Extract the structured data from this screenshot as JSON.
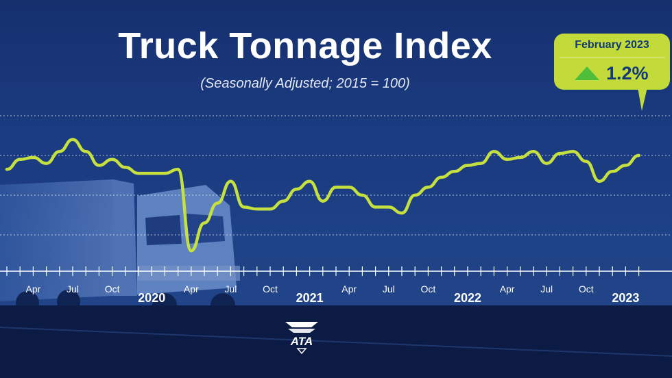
{
  "header": {
    "title": "Truck Tonnage Index",
    "subtitle": "(Seasonally Adjusted; 2015 = 100)"
  },
  "callout": {
    "month": "February 2023",
    "change": "1.2%",
    "direction": "up",
    "background_color": "#c2db3a",
    "arrow_color": "#4fbf3a",
    "text_color": "#123a76"
  },
  "logo": {
    "text": "ATA"
  },
  "chart_data": {
    "type": "line",
    "title": "Truck Tonnage Index",
    "subtitle": "(Seasonally Adjusted; 2015 = 100)",
    "xlabel": "",
    "ylabel": "",
    "x": [
      "2019-02",
      "2019-03",
      "2019-04",
      "2019-05",
      "2019-06",
      "2019-07",
      "2019-08",
      "2019-09",
      "2019-10",
      "2019-11",
      "2019-12",
      "2020-01",
      "2020-02",
      "2020-03",
      "2020-04",
      "2020-05",
      "2020-06",
      "2020-07",
      "2020-08",
      "2020-09",
      "2020-10",
      "2020-11",
      "2020-12",
      "2021-01",
      "2021-02",
      "2021-03",
      "2021-04",
      "2021-05",
      "2021-06",
      "2021-07",
      "2021-08",
      "2021-09",
      "2021-10",
      "2021-11",
      "2021-12",
      "2022-01",
      "2022-02",
      "2022-03",
      "2022-04",
      "2022-05",
      "2022-06",
      "2022-07",
      "2022-08",
      "2022-09",
      "2022-10",
      "2022-11",
      "2022-12",
      "2023-01",
      "2023-02"
    ],
    "series": [
      {
        "color": "#c5e03f",
        "values": [
          4.3,
          4.8,
          4.9,
          4.6,
          5.2,
          5.8,
          5.2,
          4.5,
          4.8,
          4.4,
          4.1,
          4.1,
          4.1,
          4.3,
          0.2,
          1.6,
          2.6,
          3.7,
          2.4,
          2.3,
          2.3,
          2.7,
          3.3,
          3.7,
          2.7,
          3.4,
          3.4,
          3.0,
          2.4,
          2.4,
          2.1,
          3.0,
          3.4,
          3.9,
          4.2,
          4.5,
          4.6,
          5.2,
          4.8,
          4.9,
          5.2,
          4.6,
          5.1,
          5.2,
          4.7,
          3.7,
          4.2,
          4.5,
          5.0
        ]
      }
    ],
    "x_tick_labels": [
      {
        "label": "Apr",
        "x": "2019-04"
      },
      {
        "label": "Jul",
        "x": "2019-07"
      },
      {
        "label": "Oct",
        "x": "2019-10"
      },
      {
        "label": "Apr",
        "x": "2020-04"
      },
      {
        "label": "Jul",
        "x": "2020-07"
      },
      {
        "label": "Oct",
        "x": "2020-10"
      },
      {
        "label": "Apr",
        "x": "2021-04"
      },
      {
        "label": "Jul",
        "x": "2021-07"
      },
      {
        "label": "Oct",
        "x": "2021-10"
      },
      {
        "label": "Apr",
        "x": "2022-04"
      },
      {
        "label": "Jul",
        "x": "2022-07"
      },
      {
        "label": "Oct",
        "x": "2022-10"
      }
    ],
    "year_labels": [
      {
        "label": "2020",
        "x": "2020-01"
      },
      {
        "label": "2021",
        "x": "2021-01"
      },
      {
        "label": "2022",
        "x": "2022-01"
      },
      {
        "label": "2023",
        "x": "2023-01"
      }
    ],
    "ylim": [
      0,
      8
    ],
    "y_gridlines": [
      1,
      3,
      5,
      7
    ],
    "grid": true,
    "grid_style": "dashed",
    "legend": "none",
    "colors": {
      "line": "#c5e03f",
      "grid": "#ffffff",
      "axis": "#ffffff"
    }
  }
}
